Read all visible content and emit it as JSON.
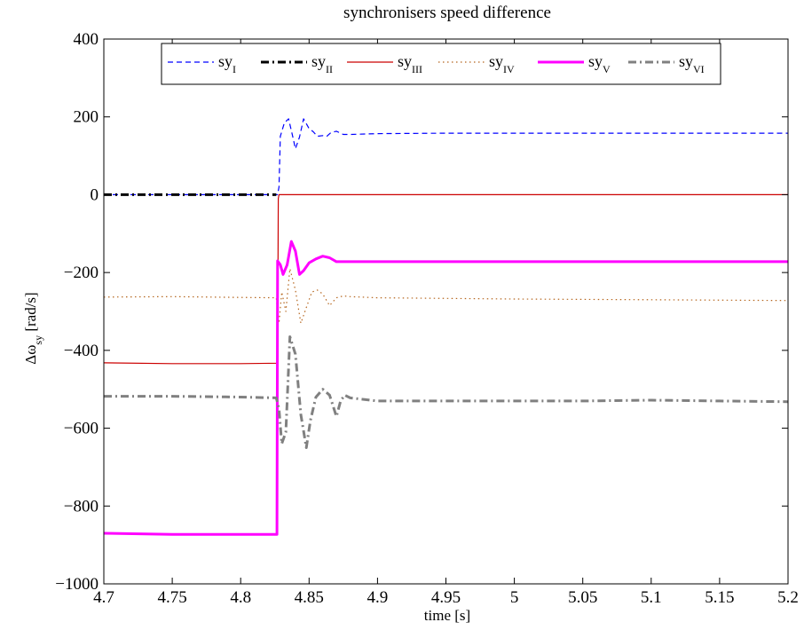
{
  "chart_data": {
    "type": "line",
    "title": "synchronisers speed difference",
    "xlabel": "time [s]",
    "ylabel": {
      "main": "Δω",
      "sub": "sy",
      "unit": " [rad/s]"
    },
    "xlim": [
      4.7,
      5.2
    ],
    "ylim": [
      -1000,
      400
    ],
    "x_ticks": [
      4.7,
      4.75,
      4.8,
      4.85,
      4.9,
      4.95,
      5.0,
      5.05,
      5.1,
      5.15,
      5.2
    ],
    "x_tick_labels": [
      "4.7",
      "4.75",
      "4.8",
      "4.85",
      "4.9",
      "4.95",
      "5",
      "5.05",
      "5.1",
      "5.15",
      "5.2"
    ],
    "y_ticks": [
      -1000,
      -800,
      -600,
      -400,
      -200,
      0,
      200,
      400
    ],
    "y_tick_labels": [
      "−1000",
      "−800",
      "−600",
      "−400",
      "−200",
      "0",
      "200",
      "400"
    ],
    "grid": false,
    "legend": {
      "placement": "top",
      "orientation": "horizontal",
      "columns": 6
    },
    "series": [
      {
        "name": "sy_I",
        "label_main": "sy",
        "label_sub": "I",
        "color": "#0000ff",
        "dash": "dashed",
        "width": "thin",
        "points": [
          [
            4.7,
            0
          ],
          [
            4.827,
            0
          ],
          [
            4.828,
            20
          ],
          [
            4.829,
            150
          ],
          [
            4.832,
            185
          ],
          [
            4.835,
            195
          ],
          [
            4.838,
            150
          ],
          [
            4.84,
            118
          ],
          [
            4.843,
            148
          ],
          [
            4.846,
            195
          ],
          [
            4.85,
            170
          ],
          [
            4.853,
            162
          ],
          [
            4.856,
            150
          ],
          [
            4.86,
            152
          ],
          [
            4.863,
            150
          ],
          [
            4.866,
            160
          ],
          [
            4.87,
            163
          ],
          [
            4.875,
            155
          ],
          [
            4.88,
            155
          ],
          [
            4.9,
            157
          ],
          [
            4.95,
            158
          ],
          [
            5.0,
            158
          ],
          [
            5.05,
            158
          ],
          [
            5.1,
            158
          ],
          [
            5.15,
            158
          ],
          [
            5.2,
            158
          ]
        ]
      },
      {
        "name": "sy_II",
        "label_main": "sy",
        "label_sub": "II",
        "color": "#000000",
        "dash": "dashdot",
        "width": "thick",
        "points": [
          [
            4.7,
            0
          ],
          [
            4.826,
            0
          ]
        ]
      },
      {
        "name": "sy_III",
        "label_main": "sy",
        "label_sub": "III",
        "color": "#cc0000",
        "dash": "solid",
        "width": "thin",
        "points": [
          [
            4.7,
            -432
          ],
          [
            4.75,
            -434
          ],
          [
            4.8,
            -434
          ],
          [
            4.827,
            -433
          ],
          [
            4.8275,
            -10
          ],
          [
            4.828,
            0
          ],
          [
            4.85,
            0
          ],
          [
            4.9,
            0
          ],
          [
            5.0,
            0
          ],
          [
            5.1,
            0
          ],
          [
            5.2,
            0
          ]
        ]
      },
      {
        "name": "sy_IV",
        "label_main": "sy",
        "label_sub": "IV",
        "color": "#b5651d",
        "dash": "dotted",
        "width": "thin",
        "points": [
          [
            4.7,
            -263
          ],
          [
            4.75,
            -262
          ],
          [
            4.8,
            -264
          ],
          [
            4.826,
            -265
          ],
          [
            4.828,
            -330
          ],
          [
            4.83,
            -250
          ],
          [
            4.833,
            -300
          ],
          [
            4.836,
            -190
          ],
          [
            4.84,
            -245
          ],
          [
            4.844,
            -330
          ],
          [
            4.848,
            -290
          ],
          [
            4.852,
            -250
          ],
          [
            4.856,
            -245
          ],
          [
            4.86,
            -255
          ],
          [
            4.865,
            -285
          ],
          [
            4.87,
            -265
          ],
          [
            4.875,
            -260
          ],
          [
            4.88,
            -262
          ],
          [
            4.9,
            -265
          ],
          [
            5.0,
            -268
          ],
          [
            5.1,
            -270
          ],
          [
            5.2,
            -272
          ]
        ]
      },
      {
        "name": "sy_V",
        "label_main": "sy",
        "label_sub": "V",
        "color": "#ff00ff",
        "dash": "solid",
        "width": "thick",
        "points": [
          [
            4.7,
            -870
          ],
          [
            4.75,
            -873
          ],
          [
            4.8,
            -873
          ],
          [
            4.8265,
            -873
          ],
          [
            4.827,
            -170
          ],
          [
            4.829,
            -180
          ],
          [
            4.831,
            -205
          ],
          [
            4.834,
            -180
          ],
          [
            4.837,
            -120
          ],
          [
            4.84,
            -145
          ],
          [
            4.843,
            -205
          ],
          [
            4.846,
            -195
          ],
          [
            4.85,
            -175
          ],
          [
            4.855,
            -165
          ],
          [
            4.86,
            -158
          ],
          [
            4.865,
            -162
          ],
          [
            4.87,
            -172
          ],
          [
            4.88,
            -172
          ],
          [
            4.9,
            -172
          ],
          [
            5.0,
            -172
          ],
          [
            5.1,
            -172
          ],
          [
            5.2,
            -172
          ]
        ]
      },
      {
        "name": "sy_VI",
        "label_main": "sy",
        "label_sub": "VI",
        "color": "#808080",
        "dash": "dashdot",
        "width": "thick",
        "points": [
          [
            4.7,
            -518
          ],
          [
            4.75,
            -518
          ],
          [
            4.8,
            -520
          ],
          [
            4.826,
            -522
          ],
          [
            4.828,
            -550
          ],
          [
            4.83,
            -640
          ],
          [
            4.833,
            -610
          ],
          [
            4.836,
            -365
          ],
          [
            4.84,
            -410
          ],
          [
            4.844,
            -565
          ],
          [
            4.848,
            -650
          ],
          [
            4.851,
            -580
          ],
          [
            4.855,
            -520
          ],
          [
            4.86,
            -500
          ],
          [
            4.865,
            -515
          ],
          [
            4.87,
            -570
          ],
          [
            4.873,
            -530
          ],
          [
            4.876,
            -515
          ],
          [
            4.88,
            -522
          ],
          [
            4.9,
            -530
          ],
          [
            4.95,
            -530
          ],
          [
            5.0,
            -530
          ],
          [
            5.05,
            -530
          ],
          [
            5.1,
            -528
          ],
          [
            5.15,
            -530
          ],
          [
            5.2,
            -532
          ]
        ]
      }
    ]
  }
}
